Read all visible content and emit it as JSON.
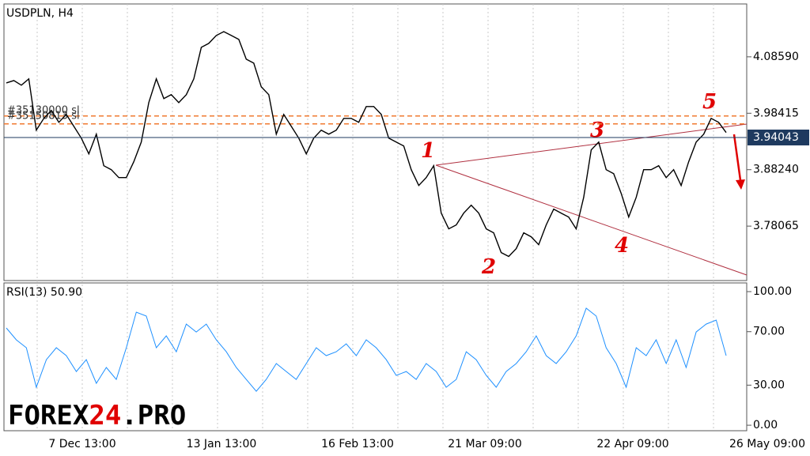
{
  "chart_data": [
    {
      "type": "line",
      "title": "USDPLN, H4",
      "color": "#000000",
      "values": [
        4.0389,
        4.0432,
        4.0347,
        4.0461,
        3.9536,
        3.9749,
        3.9891,
        3.9678,
        3.982,
        3.9607,
        3.9393,
        3.9109,
        3.9464,
        3.8895,
        3.8824,
        3.8682,
        3.8682,
        3.8966,
        3.9322,
        4.0034,
        4.0461,
        4.0105,
        4.0176,
        4.0034,
        4.0176,
        4.0461,
        4.103,
        4.1101,
        4.1243,
        4.1314,
        4.1243,
        4.1172,
        4.0816,
        4.0745,
        4.0318,
        4.0176,
        3.9464,
        3.982,
        3.9607,
        3.9393,
        3.9109,
        3.9393,
        3.9536,
        3.9464,
        3.9536,
        3.9749,
        3.9749,
        3.9678,
        3.9962,
        3.9962,
        3.982,
        3.9393,
        3.9322,
        3.9251,
        3.8824,
        3.8539,
        3.8682,
        3.8895,
        3.8041,
        3.7757,
        3.7828,
        3.8041,
        3.8184,
        3.8041,
        3.7757,
        3.7686,
        3.733,
        3.7259,
        3.7401,
        3.7686,
        3.7615,
        3.7472,
        3.7828,
        3.8113,
        3.8041,
        3.797,
        3.7757,
        3.8326,
        3.918,
        3.9322,
        3.8824,
        3.8753,
        3.8397,
        3.797,
        3.8326,
        3.8824,
        3.8824,
        3.8895,
        3.8682,
        3.8824,
        3.8539,
        3.8966,
        3.9322,
        3.9464,
        3.9749,
        3.9678,
        3.9494
      ],
      "ylim": [
        3.6825,
        4.1812
      ],
      "yticks": [
        {
          "value": 3.78065,
          "label": "3.78065"
        },
        {
          "value": 3.8824,
          "label": "3.88240"
        },
        {
          "value": 3.98415,
          "label": "3.98415"
        },
        {
          "value": 4.0859,
          "label": "4.08590"
        }
      ],
      "current_price": 3.94043,
      "current_color": "#1e3a5f",
      "levels": [
        {
          "value": 3.9792,
          "label": "#35130000 sl"
        },
        {
          "value": 3.9649,
          "label": "#35150813 sl"
        }
      ],
      "level_color": "#f07a30",
      "xtick_labels": [
        "7 Dec 13:00",
        "13 Jan 13:00",
        "16 Feb 13:00",
        "21 Mar 09:00",
        "22 Apr 09:00",
        "26 May 09:00"
      ],
      "waves": [
        "1",
        "2",
        "3",
        "4",
        "5"
      ]
    },
    {
      "type": "line",
      "title": "RSI(13) 50.90",
      "color": "#1e90ff",
      "values": [
        72.8,
        63.9,
        58.0,
        28.4,
        49.1,
        58.0,
        52.1,
        40.2,
        49.1,
        31.4,
        43.2,
        34.3,
        58.0,
        84.6,
        81.7,
        58.0,
        66.9,
        55.0,
        75.7,
        69.8,
        75.7,
        63.9,
        55.0,
        43.2,
        34.3,
        25.4,
        34.3,
        46.2,
        40.2,
        34.3,
        46.2,
        58.0,
        52.1,
        55.0,
        60.9,
        52.1,
        63.9,
        58.0,
        49.1,
        37.3,
        40.2,
        34.3,
        46.2,
        40.2,
        28.4,
        34.3,
        55.0,
        49.1,
        37.3,
        28.4,
        40.2,
        46.2,
        55.0,
        66.9,
        52.1,
        46.2,
        55.0,
        66.9,
        87.6,
        81.7,
        58.0,
        46.2,
        28.4,
        58.0,
        52.1,
        63.9,
        46.2,
        63.9,
        43.2,
        69.8,
        75.7,
        78.7,
        52.1
      ],
      "ylim": [
        -4.1,
        106.5
      ],
      "yticks": [
        {
          "value": 0,
          "label": "0.00"
        },
        {
          "value": 30,
          "label": "30.00"
        },
        {
          "value": 70,
          "label": "70.00"
        },
        {
          "value": 100,
          "label": "100.00"
        }
      ]
    }
  ],
  "watermark": {
    "part1": "FOREX",
    "part2": "24",
    "part3": ".PRO"
  }
}
